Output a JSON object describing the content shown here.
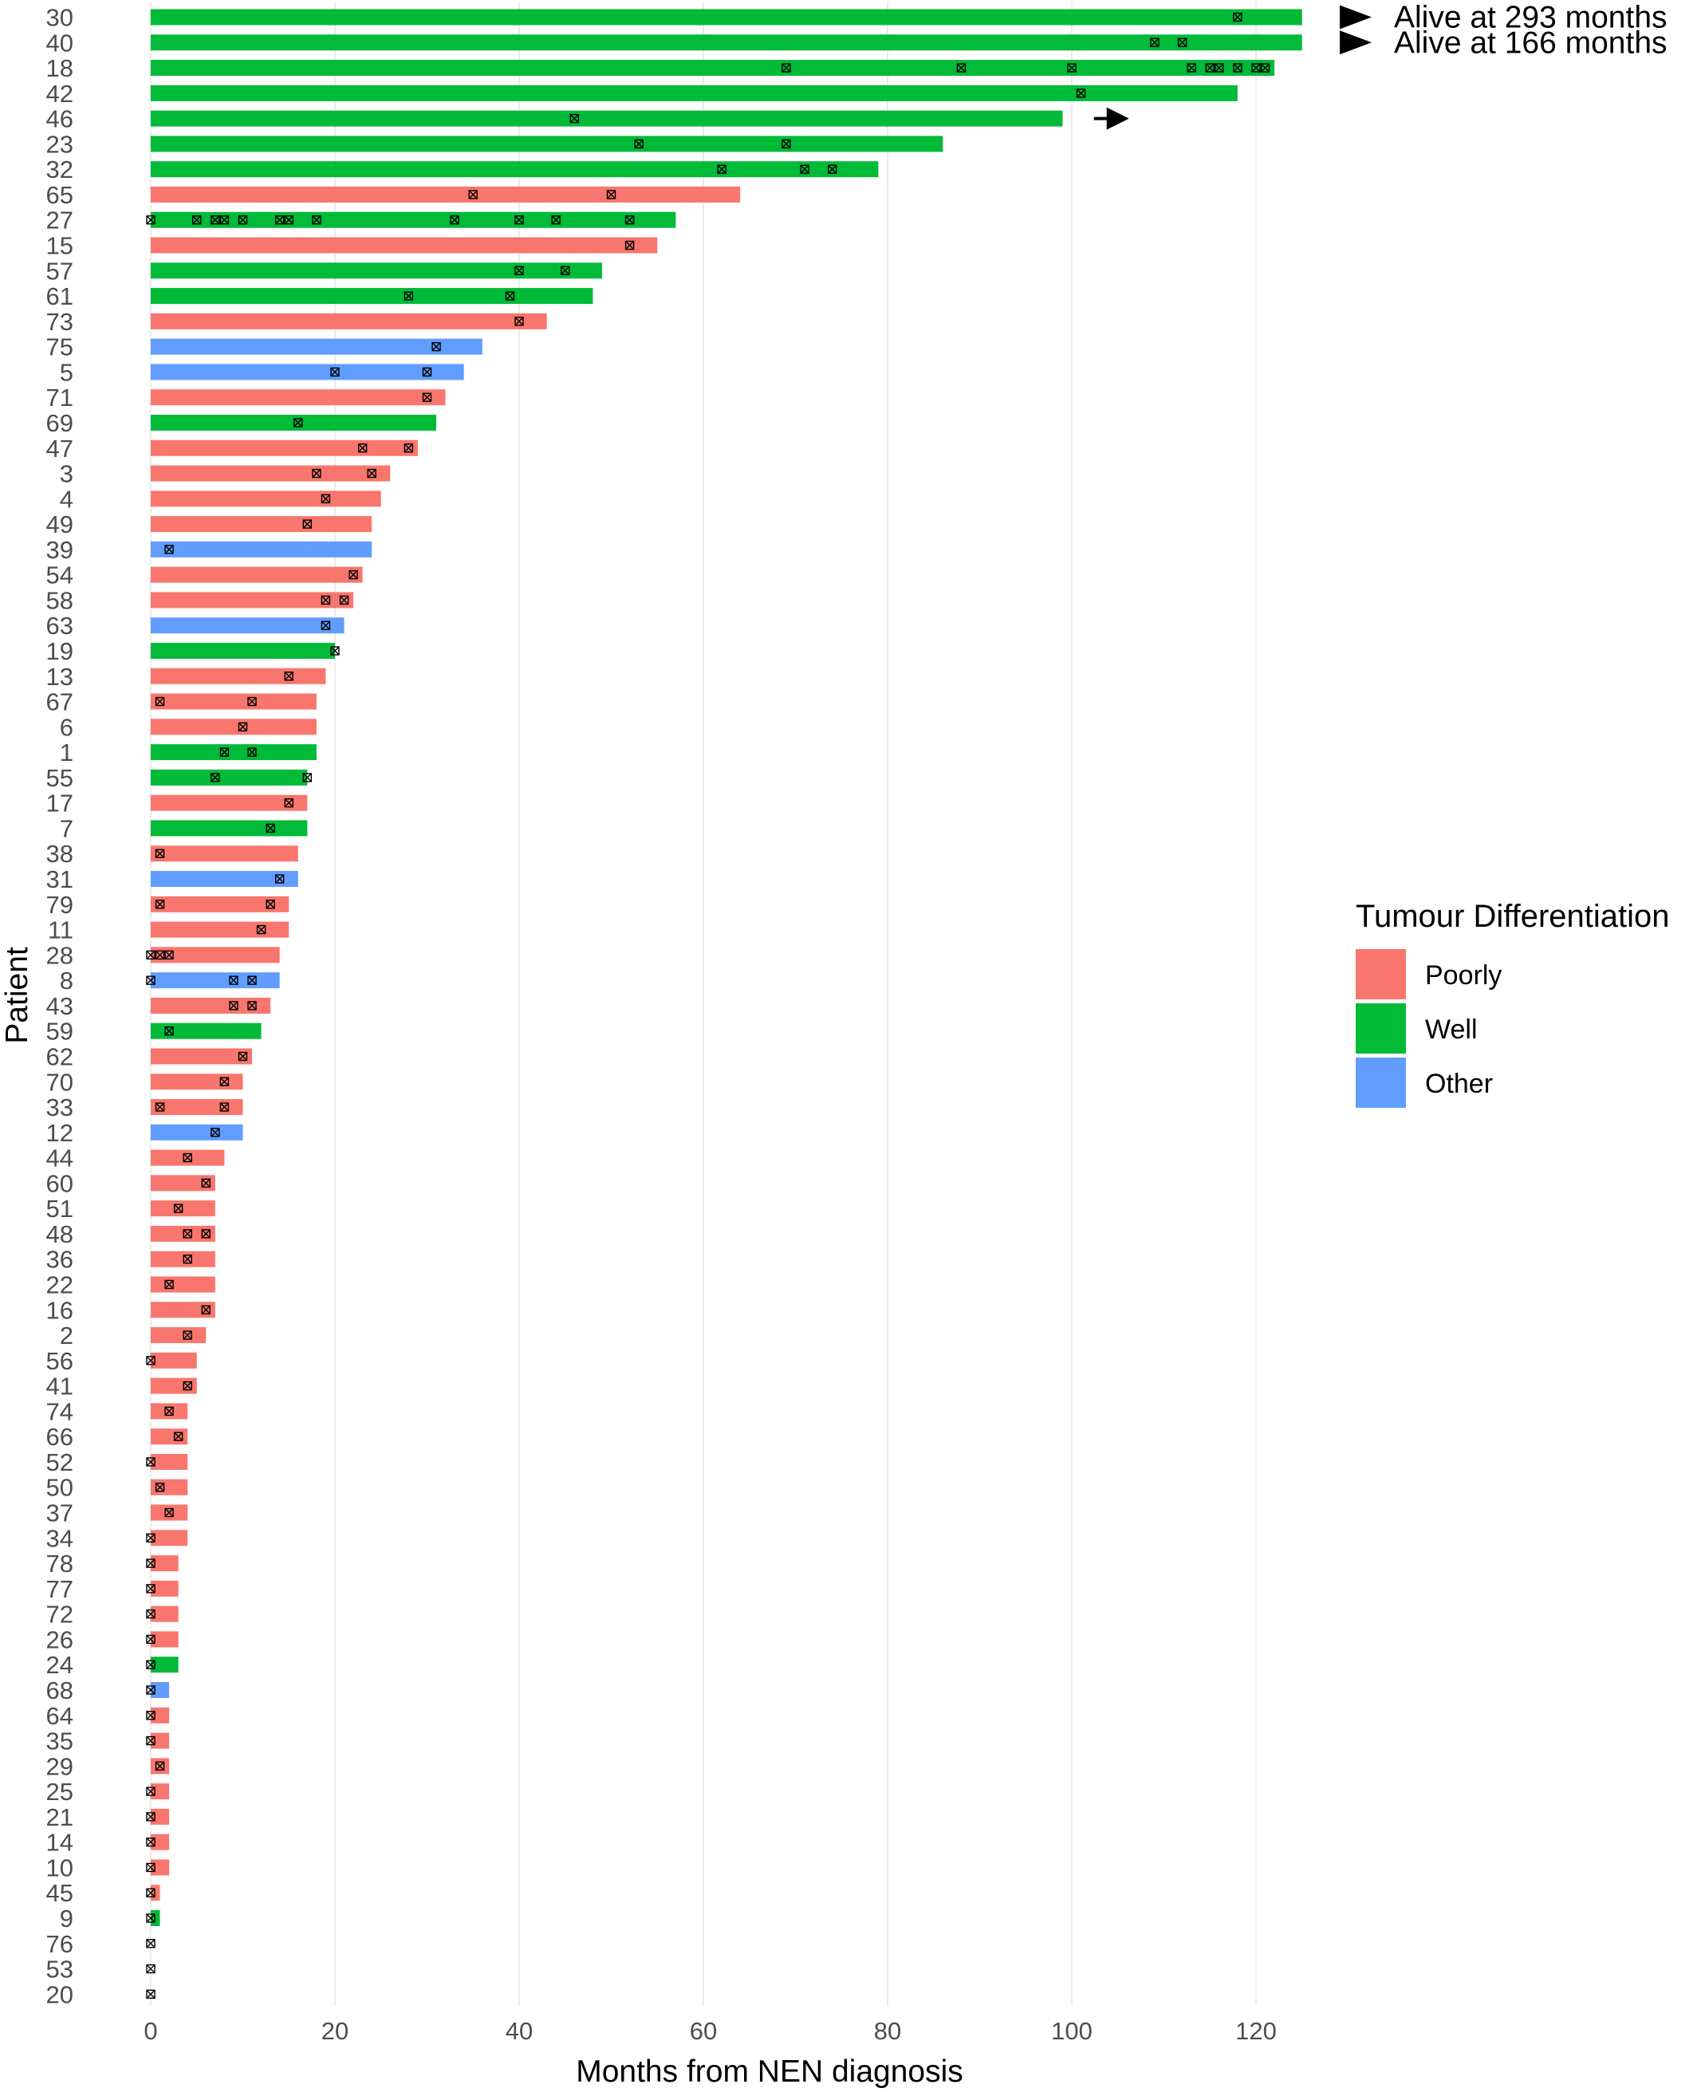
{
  "chart_data": {
    "type": "bar",
    "orientation": "horizontal",
    "xlabel": "Months from NEN diagnosis",
    "ylabel": "Patient",
    "xlim": [
      0,
      125
    ],
    "xticks": [
      0,
      20,
      40,
      60,
      80,
      100,
      120
    ],
    "grid": true,
    "legend": {
      "title": "Tumour Differentiation",
      "placement": "right",
      "entries": [
        {
          "label": "Poorly",
          "key": "Poorly",
          "color": "#F8766D"
        },
        {
          "label": "Well",
          "key": "Well",
          "color": "#00BA38"
        },
        {
          "label": "Other",
          "key": "Other",
          "color": "#619CFF"
        }
      ]
    },
    "bars": [
      {
        "patient": "30",
        "months": 125,
        "group": "Well",
        "events": [
          118
        ]
      },
      {
        "patient": "40",
        "months": 125,
        "group": "Well",
        "events": [
          109,
          112
        ]
      },
      {
        "patient": "18",
        "months": 122,
        "group": "Well",
        "events": [
          69,
          88,
          100,
          113,
          115,
          116,
          118,
          120,
          121
        ]
      },
      {
        "patient": "42",
        "months": 118,
        "group": "Well",
        "events": [
          101
        ]
      },
      {
        "patient": "46",
        "months": 99,
        "group": "Well",
        "events": [
          46
        ]
      },
      {
        "patient": "23",
        "months": 86,
        "group": "Well",
        "events": [
          53,
          69
        ]
      },
      {
        "patient": "32",
        "months": 79,
        "group": "Well",
        "events": [
          62,
          71,
          74
        ]
      },
      {
        "patient": "65",
        "months": 64,
        "group": "Poorly",
        "events": [
          35,
          50
        ]
      },
      {
        "patient": "27",
        "months": 57,
        "group": "Well",
        "events": [
          0,
          5,
          7,
          8,
          10,
          14,
          15,
          18,
          33,
          40,
          44,
          52
        ]
      },
      {
        "patient": "15",
        "months": 55,
        "group": "Poorly",
        "events": [
          52
        ]
      },
      {
        "patient": "57",
        "months": 49,
        "group": "Well",
        "events": [
          40,
          45
        ]
      },
      {
        "patient": "61",
        "months": 48,
        "group": "Well",
        "events": [
          28,
          39
        ]
      },
      {
        "patient": "73",
        "months": 43,
        "group": "Poorly",
        "events": [
          40
        ]
      },
      {
        "patient": "75",
        "months": 36,
        "group": "Other",
        "events": [
          31
        ]
      },
      {
        "patient": "5",
        "months": 34,
        "group": "Other",
        "events": [
          20,
          30
        ]
      },
      {
        "patient": "71",
        "months": 32,
        "group": "Poorly",
        "events": [
          30
        ]
      },
      {
        "patient": "69",
        "months": 31,
        "group": "Well",
        "events": [
          16
        ]
      },
      {
        "patient": "47",
        "months": 29,
        "group": "Poorly",
        "events": [
          23,
          28
        ]
      },
      {
        "patient": "3",
        "months": 26,
        "group": "Poorly",
        "events": [
          18,
          24
        ]
      },
      {
        "patient": "4",
        "months": 25,
        "group": "Poorly",
        "events": [
          19
        ]
      },
      {
        "patient": "49",
        "months": 24,
        "group": "Poorly",
        "events": [
          17
        ]
      },
      {
        "patient": "39",
        "months": 24,
        "group": "Other",
        "events": [
          2
        ]
      },
      {
        "patient": "54",
        "months": 23,
        "group": "Poorly",
        "events": [
          22
        ]
      },
      {
        "patient": "58",
        "months": 22,
        "group": "Poorly",
        "events": [
          19,
          21
        ]
      },
      {
        "patient": "63",
        "months": 21,
        "group": "Other",
        "events": [
          19
        ]
      },
      {
        "patient": "19",
        "months": 20,
        "group": "Well",
        "events": [
          20
        ]
      },
      {
        "patient": "13",
        "months": 19,
        "group": "Poorly",
        "events": [
          15
        ]
      },
      {
        "patient": "67",
        "months": 18,
        "group": "Poorly",
        "events": [
          1,
          11
        ]
      },
      {
        "patient": "6",
        "months": 18,
        "group": "Poorly",
        "events": [
          10
        ]
      },
      {
        "patient": "1",
        "months": 18,
        "group": "Well",
        "events": [
          8,
          11
        ]
      },
      {
        "patient": "55",
        "months": 17,
        "group": "Well",
        "events": [
          7,
          17
        ]
      },
      {
        "patient": "17",
        "months": 17,
        "group": "Poorly",
        "events": [
          15
        ]
      },
      {
        "patient": "7",
        "months": 17,
        "group": "Well",
        "events": [
          13
        ]
      },
      {
        "patient": "38",
        "months": 16,
        "group": "Poorly",
        "events": [
          1
        ]
      },
      {
        "patient": "31",
        "months": 16,
        "group": "Other",
        "events": [
          14
        ]
      },
      {
        "patient": "79",
        "months": 15,
        "group": "Poorly",
        "events": [
          1,
          13
        ]
      },
      {
        "patient": "11",
        "months": 15,
        "group": "Poorly",
        "events": [
          12
        ]
      },
      {
        "patient": "28",
        "months": 14,
        "group": "Poorly",
        "events": [
          0,
          1,
          2
        ]
      },
      {
        "patient": "8",
        "months": 14,
        "group": "Other",
        "events": [
          0,
          9,
          11
        ]
      },
      {
        "patient": "43",
        "months": 13,
        "group": "Poorly",
        "events": [
          9,
          11
        ]
      },
      {
        "patient": "59",
        "months": 12,
        "group": "Well",
        "events": [
          2
        ]
      },
      {
        "patient": "62",
        "months": 11,
        "group": "Poorly",
        "events": [
          10
        ]
      },
      {
        "patient": "70",
        "months": 10,
        "group": "Poorly",
        "events": [
          8
        ]
      },
      {
        "patient": "33",
        "months": 10,
        "group": "Poorly",
        "events": [
          1,
          8
        ]
      },
      {
        "patient": "12",
        "months": 10,
        "group": "Other",
        "events": [
          7
        ]
      },
      {
        "patient": "44",
        "months": 8,
        "group": "Poorly",
        "events": [
          4
        ]
      },
      {
        "patient": "60",
        "months": 7,
        "group": "Poorly",
        "events": [
          6
        ]
      },
      {
        "patient": "51",
        "months": 7,
        "group": "Poorly",
        "events": [
          3
        ]
      },
      {
        "patient": "48",
        "months": 7,
        "group": "Poorly",
        "events": [
          4,
          6
        ]
      },
      {
        "patient": "36",
        "months": 7,
        "group": "Poorly",
        "events": [
          4
        ]
      },
      {
        "patient": "22",
        "months": 7,
        "group": "Poorly",
        "events": [
          2
        ]
      },
      {
        "patient": "16",
        "months": 7,
        "group": "Poorly",
        "events": [
          6
        ]
      },
      {
        "patient": "2",
        "months": 6,
        "group": "Poorly",
        "events": [
          4
        ]
      },
      {
        "patient": "56",
        "months": 5,
        "group": "Poorly",
        "events": [
          0
        ]
      },
      {
        "patient": "41",
        "months": 5,
        "group": "Poorly",
        "events": [
          4
        ]
      },
      {
        "patient": "74",
        "months": 4,
        "group": "Poorly",
        "events": [
          2
        ]
      },
      {
        "patient": "66",
        "months": 4,
        "group": "Poorly",
        "events": [
          3
        ]
      },
      {
        "patient": "52",
        "months": 4,
        "group": "Poorly",
        "events": [
          0
        ]
      },
      {
        "patient": "50",
        "months": 4,
        "group": "Poorly",
        "events": [
          1
        ]
      },
      {
        "patient": "37",
        "months": 4,
        "group": "Poorly",
        "events": [
          2
        ]
      },
      {
        "patient": "34",
        "months": 4,
        "group": "Poorly",
        "events": [
          0
        ]
      },
      {
        "patient": "78",
        "months": 3,
        "group": "Poorly",
        "events": [
          0
        ]
      },
      {
        "patient": "77",
        "months": 3,
        "group": "Poorly",
        "events": [
          0
        ]
      },
      {
        "patient": "72",
        "months": 3,
        "group": "Poorly",
        "events": [
          0
        ]
      },
      {
        "patient": "26",
        "months": 3,
        "group": "Poorly",
        "events": [
          0
        ]
      },
      {
        "patient": "24",
        "months": 3,
        "group": "Well",
        "events": [
          0
        ]
      },
      {
        "patient": "68",
        "months": 2,
        "group": "Other",
        "events": [
          0
        ]
      },
      {
        "patient": "64",
        "months": 2,
        "group": "Poorly",
        "events": [
          0
        ]
      },
      {
        "patient": "35",
        "months": 2,
        "group": "Poorly",
        "events": [
          0
        ]
      },
      {
        "patient": "29",
        "months": 2,
        "group": "Poorly",
        "events": [
          1
        ]
      },
      {
        "patient": "25",
        "months": 2,
        "group": "Poorly",
        "events": [
          0
        ]
      },
      {
        "patient": "21",
        "months": 2,
        "group": "Poorly",
        "events": [
          0
        ]
      },
      {
        "patient": "14",
        "months": 2,
        "group": "Poorly",
        "events": [
          0
        ]
      },
      {
        "patient": "10",
        "months": 2,
        "group": "Poorly",
        "events": [
          0
        ]
      },
      {
        "patient": "45",
        "months": 1,
        "group": "Poorly",
        "events": [
          0
        ]
      },
      {
        "patient": "9",
        "months": 1,
        "group": "Well",
        "events": [
          0
        ]
      },
      {
        "patient": "76",
        "months": 0,
        "group": "Poorly",
        "events": [
          0
        ]
      },
      {
        "patient": "53",
        "months": 0,
        "group": "Poorly",
        "events": [
          0
        ]
      },
      {
        "patient": "20",
        "months": 0,
        "group": "Poorly",
        "events": [
          0
        ]
      }
    ],
    "annotations": [
      {
        "patient": "30",
        "text": "Alive at 293 months"
      },
      {
        "patient": "40",
        "text": "Alive at 166 months"
      }
    ],
    "arrows": [
      {
        "patient": "46",
        "months": 105
      }
    ]
  }
}
